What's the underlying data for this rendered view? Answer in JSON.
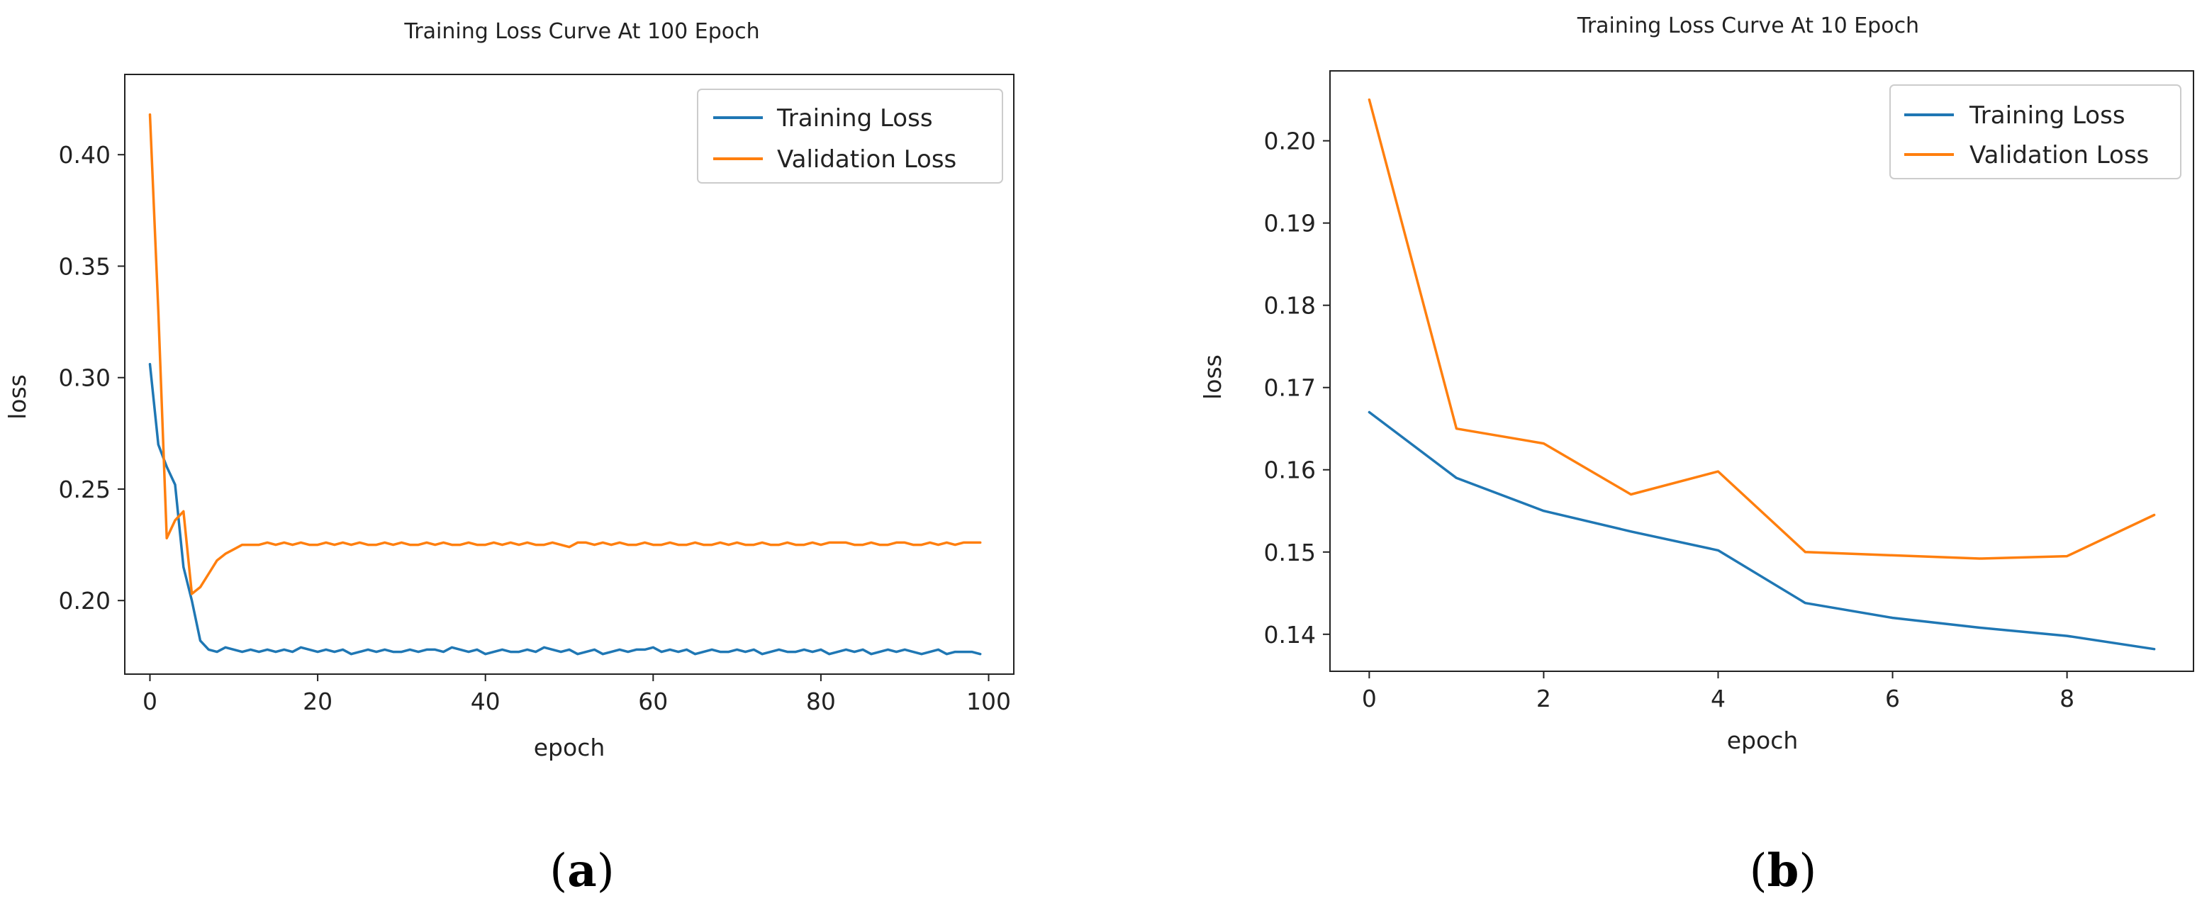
{
  "colors": {
    "training": "#1f77b4",
    "validation": "#ff7f0e"
  },
  "chart_data": [
    {
      "type": "line",
      "title": "Training Loss Curve At 100 Epoch",
      "xlabel": "epoch",
      "ylabel": "loss",
      "xlim": [
        -3,
        103
      ],
      "ylim": [
        0.167,
        0.436
      ],
      "xticks": [
        0,
        20,
        40,
        60,
        80,
        100
      ],
      "xtick_labels": [
        "0",
        "20",
        "40",
        "60",
        "80",
        "100"
      ],
      "yticks": [
        0.2,
        0.25,
        0.3,
        0.35,
        0.4
      ],
      "ytick_labels": [
        "0.20",
        "0.25",
        "0.30",
        "0.35",
        "0.40"
      ],
      "legend_position": "top-right",
      "panel_label": "a",
      "x": [
        0,
        1,
        2,
        3,
        4,
        5,
        6,
        7,
        8,
        9,
        10,
        11,
        12,
        13,
        14,
        15,
        16,
        17,
        18,
        19,
        20,
        21,
        22,
        23,
        24,
        25,
        26,
        27,
        28,
        29,
        30,
        31,
        32,
        33,
        34,
        35,
        36,
        37,
        38,
        39,
        40,
        41,
        42,
        43,
        44,
        45,
        46,
        47,
        48,
        49,
        50,
        51,
        52,
        53,
        54,
        55,
        56,
        57,
        58,
        59,
        60,
        61,
        62,
        63,
        64,
        65,
        66,
        67,
        68,
        69,
        70,
        71,
        72,
        73,
        74,
        75,
        76,
        77,
        78,
        79,
        80,
        81,
        82,
        83,
        84,
        85,
        86,
        87,
        88,
        89,
        90,
        91,
        92,
        93,
        94,
        95,
        96,
        97,
        98,
        99
      ],
      "series": [
        {
          "name": "Training Loss",
          "color_key": "training",
          "values": [
            0.306,
            0.27,
            0.26,
            0.252,
            0.215,
            0.2,
            0.182,
            0.178,
            0.177,
            0.179,
            0.178,
            0.177,
            0.178,
            0.177,
            0.178,
            0.177,
            0.178,
            0.177,
            0.179,
            0.178,
            0.177,
            0.178,
            0.177,
            0.178,
            0.176,
            0.177,
            0.178,
            0.177,
            0.178,
            0.177,
            0.177,
            0.178,
            0.177,
            0.178,
            0.178,
            0.177,
            0.179,
            0.178,
            0.177,
            0.178,
            0.176,
            0.177,
            0.178,
            0.177,
            0.177,
            0.178,
            0.177,
            0.179,
            0.178,
            0.177,
            0.178,
            0.176,
            0.177,
            0.178,
            0.176,
            0.177,
            0.178,
            0.177,
            0.178,
            0.178,
            0.179,
            0.177,
            0.178,
            0.177,
            0.178,
            0.176,
            0.177,
            0.178,
            0.177,
            0.177,
            0.178,
            0.177,
            0.178,
            0.176,
            0.177,
            0.178,
            0.177,
            0.177,
            0.178,
            0.177,
            0.178,
            0.176,
            0.177,
            0.178,
            0.177,
            0.178,
            0.176,
            0.177,
            0.178,
            0.177,
            0.178,
            0.177,
            0.176,
            0.177,
            0.178,
            0.176,
            0.177,
            0.177,
            0.177,
            0.176
          ]
        },
        {
          "name": "Validation Loss",
          "color_key": "validation",
          "values": [
            0.418,
            0.33,
            0.228,
            0.236,
            0.24,
            0.203,
            0.206,
            0.212,
            0.218,
            0.221,
            0.223,
            0.225,
            0.225,
            0.225,
            0.226,
            0.225,
            0.226,
            0.225,
            0.226,
            0.225,
            0.225,
            0.226,
            0.225,
            0.226,
            0.225,
            0.226,
            0.225,
            0.225,
            0.226,
            0.225,
            0.226,
            0.225,
            0.225,
            0.226,
            0.225,
            0.226,
            0.225,
            0.225,
            0.226,
            0.225,
            0.225,
            0.226,
            0.225,
            0.226,
            0.225,
            0.226,
            0.225,
            0.225,
            0.226,
            0.225,
            0.224,
            0.226,
            0.226,
            0.225,
            0.226,
            0.225,
            0.226,
            0.225,
            0.225,
            0.226,
            0.225,
            0.225,
            0.226,
            0.225,
            0.225,
            0.226,
            0.225,
            0.225,
            0.226,
            0.225,
            0.226,
            0.225,
            0.225,
            0.226,
            0.225,
            0.225,
            0.226,
            0.225,
            0.225,
            0.226,
            0.225,
            0.226,
            0.226,
            0.226,
            0.225,
            0.225,
            0.226,
            0.225,
            0.225,
            0.226,
            0.226,
            0.225,
            0.225,
            0.226,
            0.225,
            0.226,
            0.225,
            0.226,
            0.226,
            0.226
          ]
        }
      ]
    },
    {
      "type": "line",
      "title": "Training Loss Curve At 10 Epoch",
      "xlabel": "epoch",
      "ylabel": "loss",
      "xlim": [
        -0.45,
        9.45
      ],
      "ylim": [
        0.1355,
        0.2085
      ],
      "xticks": [
        0,
        2,
        4,
        6,
        8
      ],
      "xtick_labels": [
        "0",
        "2",
        "4",
        "6",
        "8"
      ],
      "yticks": [
        0.14,
        0.15,
        0.16,
        0.17,
        0.18,
        0.19,
        0.2
      ],
      "ytick_labels": [
        "0.14",
        "0.15",
        "0.16",
        "0.17",
        "0.18",
        "0.19",
        "0.20"
      ],
      "legend_position": "top-right",
      "panel_label": "b",
      "x": [
        0,
        1,
        2,
        3,
        4,
        5,
        6,
        7,
        8,
        9
      ],
      "series": [
        {
          "name": "Training Loss",
          "color_key": "training",
          "values": [
            0.167,
            0.159,
            0.155,
            0.1525,
            0.1502,
            0.1438,
            0.142,
            0.1408,
            0.1398,
            0.1382
          ]
        },
        {
          "name": "Validation Loss",
          "color_key": "validation",
          "values": [
            0.205,
            0.165,
            0.1632,
            0.157,
            0.1598,
            0.15,
            0.1496,
            0.1492,
            0.1495,
            0.1545
          ]
        }
      ]
    }
  ]
}
